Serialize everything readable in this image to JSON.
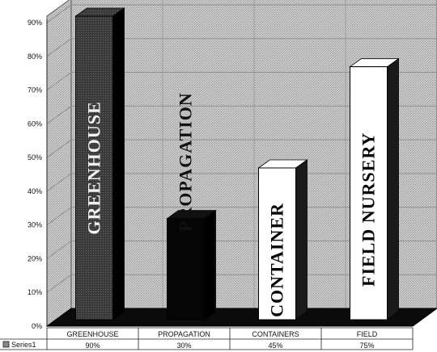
{
  "chart_data": {
    "type": "bar",
    "categories": [
      "GREENHOUSE",
      "PROPAGATION",
      "CONTAINERS",
      "FIELD"
    ],
    "series": [
      {
        "name": "Series1",
        "values": [
          90,
          30,
          45,
          75
        ],
        "value_labels": [
          "90%",
          "30%",
          "45%",
          "75%"
        ]
      }
    ],
    "bar_labels": [
      "GREENHOUSE",
      "PROPAGATION",
      "CONTAINER",
      "FIELD NURSERY"
    ],
    "yticks": [
      "0%",
      "10%",
      "20%",
      "30%",
      "40%",
      "50%",
      "60%",
      "70%",
      "80%",
      "90%"
    ],
    "ylim": [
      0,
      90
    ],
    "grid": true,
    "style": "3d-column",
    "data_table": true,
    "colors": {
      "background_panel": "#c7c7c7",
      "gridline": "#8a8a8a",
      "floor": "#0b0b0b",
      "bars": [
        "#3c3c3c",
        "#050505",
        "#ffffff",
        "#ffffff"
      ],
      "bar_text": [
        "#f2f2f2",
        "#f2f2f2",
        "#050505",
        "#050505"
      ]
    }
  }
}
